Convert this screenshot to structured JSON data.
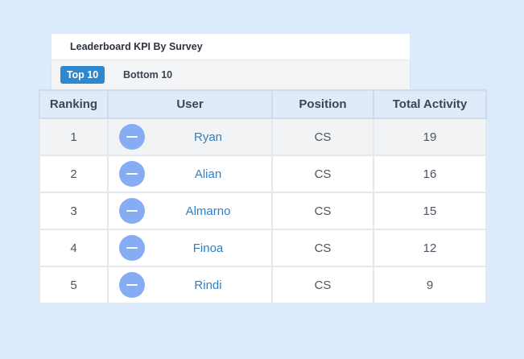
{
  "card": {
    "title": "Leaderboard KPI By Survey"
  },
  "tabs": [
    {
      "label": "Top 10",
      "active": true
    },
    {
      "label": "Bottom 10",
      "active": false
    }
  ],
  "table": {
    "headers": {
      "ranking": "Ranking",
      "user": "User",
      "position": "Position",
      "activity": "Total Activity"
    },
    "rows": [
      {
        "rank": "1",
        "user": "Ryan",
        "position": "CS",
        "activity": "19",
        "avatar_icon": "minus-icon"
      },
      {
        "rank": "2",
        "user": "Alian",
        "position": "CS",
        "activity": "16",
        "avatar_icon": "minus-icon"
      },
      {
        "rank": "3",
        "user": "Almarno",
        "position": "CS",
        "activity": "15",
        "avatar_icon": "minus-icon"
      },
      {
        "rank": "4",
        "user": "Finoa",
        "position": "CS",
        "activity": "12",
        "avatar_icon": "minus-icon"
      },
      {
        "rank": "5",
        "user": "Rindi",
        "position": "CS",
        "activity": "9",
        "avatar_icon": "minus-icon"
      }
    ]
  },
  "colors": {
    "background": "#dbeafd",
    "accent": "#2e88d0",
    "link": "#2f7fc4",
    "avatar": "#86acf3",
    "header_bg": "#dfeafb"
  }
}
